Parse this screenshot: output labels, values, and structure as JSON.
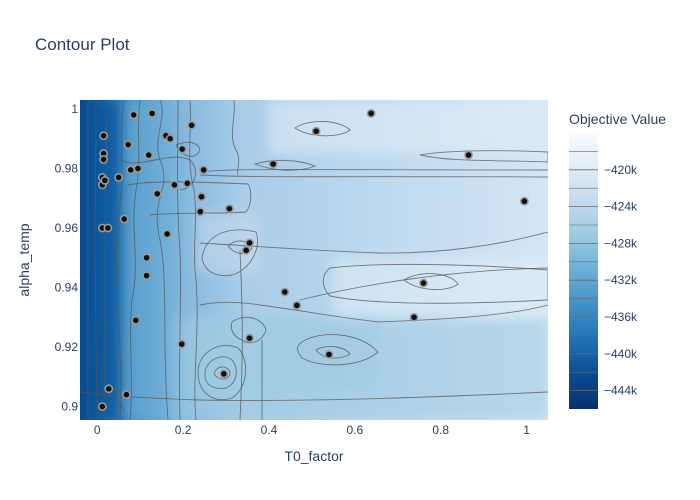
{
  "chart_data": {
    "type": "contour",
    "title": "Contour Plot",
    "xlabel": "T0_factor",
    "ylabel": "alpha_temp",
    "xlim": [
      -0.04,
      1.05
    ],
    "ylim": [
      0.8955,
      1.003
    ],
    "x_ticks": [
      0,
      0.2,
      0.4,
      0.6,
      0.8,
      1
    ],
    "x_tick_labels": [
      "0",
      "0.2",
      "0.4",
      "0.6",
      "0.8",
      "1"
    ],
    "y_ticks": [
      0.9,
      0.92,
      0.94,
      0.96,
      0.98,
      1
    ],
    "y_tick_labels": [
      "0.9",
      "0.92",
      "0.94",
      "0.96",
      "0.98",
      "1"
    ],
    "colorbar": {
      "title": "Objective Value",
      "range": [
        -446000,
        -416000
      ],
      "ticks": [
        -444000,
        -440000,
        -436000,
        -432000,
        -428000,
        -424000,
        -420000
      ],
      "tick_labels": [
        "−444k",
        "−440k",
        "−436k",
        "−432k",
        "−428k",
        "−424k",
        "−420k"
      ],
      "colors": [
        "#08306b",
        "#0b4a91",
        "#2171b5",
        "#4292c6",
        "#6baed6",
        "#9ecae1",
        "#c6dbef",
        "#e2eef8",
        "#f7fbff"
      ]
    },
    "points": [
      {
        "x": 0.015,
        "y": 0.991
      },
      {
        "x": 0.015,
        "y": 0.985
      },
      {
        "x": 0.015,
        "y": 0.983
      },
      {
        "x": 0.012,
        "y": 0.977
      },
      {
        "x": 0.012,
        "y": 0.9745
      },
      {
        "x": 0.018,
        "y": 0.976
      },
      {
        "x": 0.05,
        "y": 0.977
      },
      {
        "x": 0.072,
        "y": 0.988
      },
      {
        "x": 0.085,
        "y": 0.998
      },
      {
        "x": 0.128,
        "y": 0.9985
      },
      {
        "x": 0.16,
        "y": 0.991
      },
      {
        "x": 0.17,
        "y": 0.99
      },
      {
        "x": 0.22,
        "y": 0.9945
      },
      {
        "x": 0.12,
        "y": 0.9845
      },
      {
        "x": 0.078,
        "y": 0.9795
      },
      {
        "x": 0.095,
        "y": 0.98
      },
      {
        "x": 0.198,
        "y": 0.9865
      },
      {
        "x": 0.248,
        "y": 0.9795
      },
      {
        "x": 0.18,
        "y": 0.9745
      },
      {
        "x": 0.21,
        "y": 0.975
      },
      {
        "x": 0.14,
        "y": 0.9715
      },
      {
        "x": 0.243,
        "y": 0.9705
      },
      {
        "x": 0.24,
        "y": 0.9655
      },
      {
        "x": 0.308,
        "y": 0.9665
      },
      {
        "x": 0.063,
        "y": 0.963
      },
      {
        "x": 0.012,
        "y": 0.96
      },
      {
        "x": 0.025,
        "y": 0.96
      },
      {
        "x": 0.163,
        "y": 0.958
      },
      {
        "x": 0.355,
        "y": 0.955
      },
      {
        "x": 0.347,
        "y": 0.9525
      },
      {
        "x": 0.115,
        "y": 0.95
      },
      {
        "x": 0.115,
        "y": 0.944
      },
      {
        "x": 0.437,
        "y": 0.9385
      },
      {
        "x": 0.465,
        "y": 0.934
      },
      {
        "x": 0.09,
        "y": 0.929
      },
      {
        "x": 0.355,
        "y": 0.923
      },
      {
        "x": 0.197,
        "y": 0.921
      },
      {
        "x": 0.54,
        "y": 0.9175
      },
      {
        "x": 0.295,
        "y": 0.911
      },
      {
        "x": 0.027,
        "y": 0.906
      },
      {
        "x": 0.068,
        "y": 0.904
      },
      {
        "x": 0.012,
        "y": 0.9
      },
      {
        "x": 0.638,
        "y": 0.9985
      },
      {
        "x": 0.51,
        "y": 0.9925
      },
      {
        "x": 0.41,
        "y": 0.9815
      },
      {
        "x": 0.865,
        "y": 0.9845
      },
      {
        "x": 0.995,
        "y": 0.969
      },
      {
        "x": 0.76,
        "y": 0.9415
      },
      {
        "x": 0.738,
        "y": 0.93
      }
    ],
    "regions": [
      {
        "x0": -0.04,
        "x1": 0.06,
        "y0": 0.8955,
        "y1": 1.003,
        "value": -442000
      },
      {
        "x0": 0.06,
        "x1": 0.18,
        "y0": 0.8955,
        "y1": 1.003,
        "value": -430000
      },
      {
        "x0": 0.18,
        "x1": 1.05,
        "y0": 0.8955,
        "y1": 0.93,
        "value": -428000
      },
      {
        "x0": 0.22,
        "x1": 0.65,
        "y0": 0.905,
        "y1": 0.93,
        "value": -429000
      },
      {
        "x0": 0.23,
        "x1": 0.38,
        "y0": 0.945,
        "y1": 0.965,
        "value": -425000
      },
      {
        "x0": 0.4,
        "x1": 1.05,
        "y0": 0.985,
        "y1": 1.003,
        "value": -420000
      },
      {
        "x0": 0.55,
        "x1": 1.05,
        "y0": 0.93,
        "y1": 0.95,
        "value": -421000
      }
    ]
  }
}
